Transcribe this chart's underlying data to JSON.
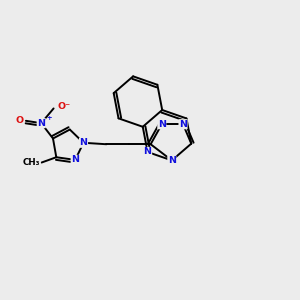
{
  "bg_color": "#ececec",
  "bond_color": "#000000",
  "n_color": "#1010dd",
  "o_color": "#dd1010",
  "lw": 1.4,
  "fs": 6.8,
  "fig_size": [
    3.0,
    3.0
  ],
  "dpi": 100,
  "xlim": [
    0,
    10
  ],
  "ylim": [
    0,
    10
  ]
}
